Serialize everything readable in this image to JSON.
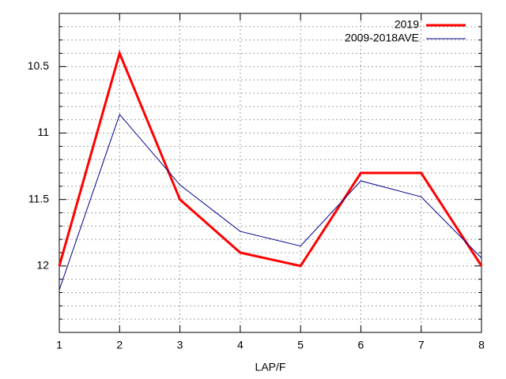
{
  "chart_data": {
    "type": "line",
    "x_label": "LAP/F",
    "x": [
      1,
      2,
      3,
      4,
      5,
      6,
      7,
      8
    ],
    "series": [
      {
        "name": "2019",
        "color": "#ff0000",
        "width": 3,
        "values": [
          12.0,
          10.4,
          11.5,
          11.9,
          12.0,
          11.3,
          11.3,
          12.0
        ]
      },
      {
        "name": "2009-2018AVE",
        "color": "#00008b",
        "width": 1,
        "values": [
          12.18,
          10.86,
          11.39,
          11.74,
          11.85,
          11.36,
          11.48,
          11.94
        ]
      }
    ],
    "xlim": [
      1,
      8
    ],
    "xticks": [
      1,
      2,
      3,
      4,
      5,
      6,
      7,
      8
    ],
    "ylim": [
      10.1,
      12.5
    ],
    "y_reversed": true,
    "yticks": [
      10.5,
      11,
      11.5,
      12
    ],
    "y_minor_ticks": [
      10.2,
      10.3,
      10.4,
      10.6,
      10.7,
      10.8,
      10.9,
      11.1,
      11.2,
      11.3,
      11.4,
      11.6,
      11.7,
      11.8,
      11.9,
      12.1,
      12.2,
      12.3,
      12.4
    ],
    "grid": true,
    "legend": "top-right"
  }
}
